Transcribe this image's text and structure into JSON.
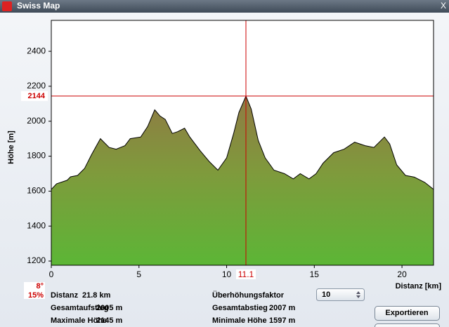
{
  "window": {
    "title": "Swiss Map",
    "close": "X"
  },
  "chart_data": {
    "type": "area",
    "x": [
      0,
      0.3,
      0.9,
      1.1,
      1.5,
      1.9,
      2.3,
      2.8,
      3.3,
      3.7,
      4.2,
      4.5,
      5.1,
      5.5,
      5.9,
      6.2,
      6.5,
      6.9,
      7.2,
      7.6,
      7.9,
      8.5,
      9.0,
      9.5,
      10.0,
      10.4,
      10.7,
      11.1,
      11.4,
      11.8,
      12.2,
      12.7,
      13.3,
      13.8,
      14.2,
      14.7,
      15.1,
      15.5,
      16.1,
      16.7,
      17.3,
      17.9,
      18.4,
      19.0,
      19.3,
      19.7,
      20.2,
      20.7,
      21.3,
      21.8
    ],
    "values": [
      1610,
      1642,
      1662,
      1682,
      1690,
      1730,
      1810,
      1900,
      1850,
      1840,
      1860,
      1900,
      1910,
      1970,
      2065,
      2030,
      2010,
      1930,
      1940,
      1960,
      1910,
      1830,
      1770,
      1720,
      1790,
      1930,
      2050,
      2144,
      2070,
      1890,
      1790,
      1720,
      1700,
      1670,
      1700,
      1670,
      1700,
      1760,
      1820,
      1840,
      1880,
      1860,
      1850,
      1910,
      1870,
      1750,
      1690,
      1680,
      1650,
      1610
    ],
    "xlim": [
      0,
      21.8
    ],
    "ylim": [
      1176,
      2577
    ],
    "xticks": [
      0,
      5,
      10,
      15,
      20
    ],
    "yticks": [
      1200,
      1400,
      1600,
      1800,
      2000,
      2200,
      2400
    ],
    "ylabel": "Höhe [m]",
    "xlabel": "Distanz [km]",
    "cursor": {
      "x": 11.1,
      "y": 2144
    },
    "color": "#000000"
  },
  "slope": {
    "degrees": "8°",
    "percent": "15%"
  },
  "stats": [
    {
      "label": "Distanz",
      "value": "21.8 km"
    },
    {
      "label": "Gesamtaufstieg",
      "value": "2005 m"
    },
    {
      "label": "Maximale Höhe",
      "value": "2145 m"
    },
    {
      "label": "Gesamtabstieg",
      "value": "2007 m"
    },
    {
      "label": "Minimale Höhe",
      "value": "1597 m"
    }
  ],
  "controls": {
    "factor_label": "Überhöhungsfaktor",
    "factor_value": "10",
    "export_button": "Exportieren"
  }
}
